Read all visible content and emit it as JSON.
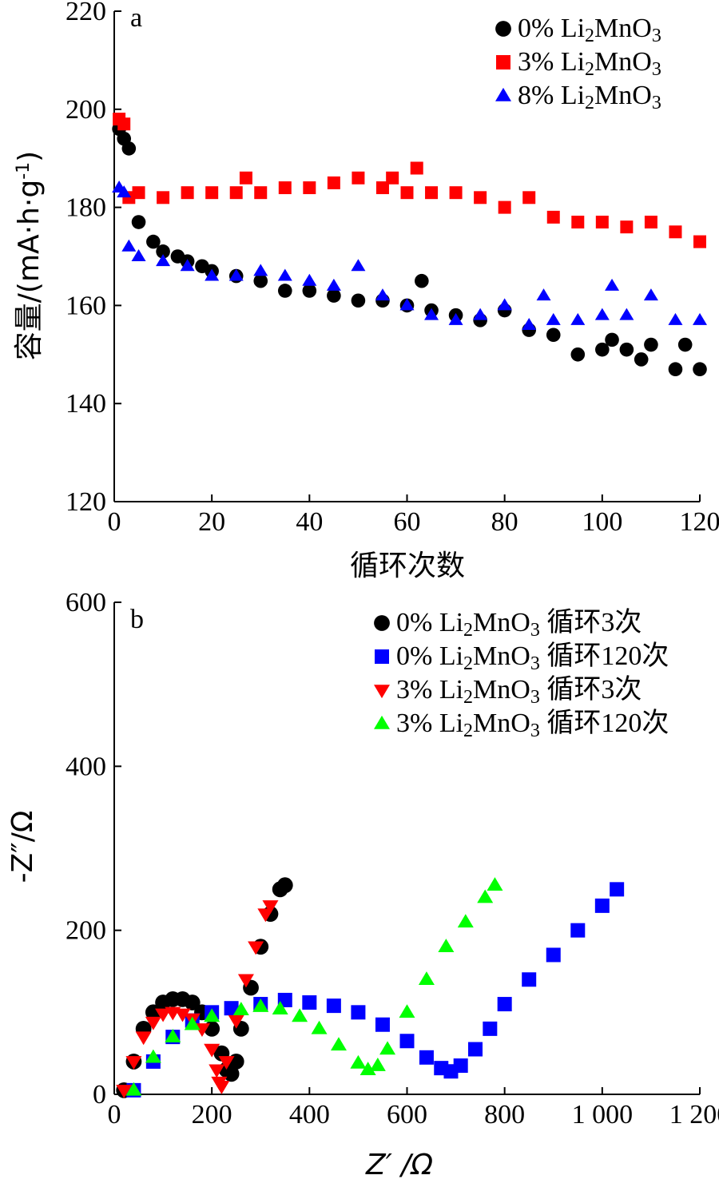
{
  "chart_data": [
    {
      "type": "scatter",
      "panel_label": "a",
      "xlabel": "循环次数",
      "ylabel": "容量/(mA·h·g⁻¹)",
      "xlim": [
        0,
        120
      ],
      "ylim": [
        120,
        220
      ],
      "x_ticks": [
        "0",
        "20",
        "40",
        "60",
        "80",
        "100",
        "120"
      ],
      "y_ticks": [
        "120",
        "140",
        "160",
        "180",
        "200",
        "220"
      ],
      "legend_position": "top-right",
      "series": [
        {
          "name": "0% Li2MnO3",
          "color": "#000000",
          "marker": "circle",
          "x": [
            1,
            2,
            3,
            5,
            8,
            10,
            13,
            15,
            18,
            20,
            25,
            30,
            35,
            40,
            45,
            50,
            55,
            60,
            63,
            65,
            70,
            75,
            80,
            85,
            90,
            95,
            100,
            102,
            105,
            108,
            110,
            115,
            117,
            120
          ],
          "values": [
            196,
            194,
            192,
            177,
            173,
            171,
            170,
            169,
            168,
            167,
            166,
            165,
            163,
            163,
            162,
            161,
            161,
            160,
            165,
            159,
            158,
            157,
            159,
            155,
            154,
            150,
            151,
            153,
            151,
            149,
            152,
            147,
            152,
            147
          ]
        },
        {
          "name": "3% Li2MnO3",
          "color": "#ff0000",
          "marker": "square",
          "x": [
            1,
            2,
            3,
            5,
            10,
            15,
            20,
            25,
            27,
            30,
            35,
            40,
            45,
            50,
            55,
            57,
            60,
            62,
            65,
            70,
            75,
            80,
            85,
            90,
            95,
            100,
            105,
            110,
            115,
            120
          ],
          "values": [
            198,
            197,
            182,
            183,
            182,
            183,
            183,
            183,
            186,
            183,
            184,
            184,
            185,
            186,
            184,
            186,
            183,
            188,
            183,
            183,
            182,
            180,
            182,
            178,
            177,
            177,
            176,
            177,
            175,
            173
          ]
        },
        {
          "name": "8% Li2MnO3",
          "color": "#0000ff",
          "marker": "triangle",
          "x": [
            1,
            2,
            3,
            5,
            10,
            15,
            20,
            25,
            30,
            35,
            40,
            45,
            50,
            55,
            60,
            65,
            70,
            75,
            80,
            85,
            88,
            90,
            95,
            100,
            102,
            105,
            110,
            115,
            120
          ],
          "values": [
            184,
            183,
            172,
            170,
            169,
            168,
            166,
            166,
            167,
            166,
            165,
            164,
            168,
            162,
            160,
            158,
            157,
            158,
            160,
            156,
            162,
            157,
            157,
            158,
            164,
            158,
            162,
            157,
            157
          ]
        }
      ]
    },
    {
      "type": "scatter",
      "panel_label": "b",
      "xlabel": "Z′ /Ω",
      "ylabel": "-Z″/Ω",
      "xlim": [
        0,
        1200
      ],
      "ylim": [
        0,
        600
      ],
      "x_ticks": [
        "0",
        "200",
        "400",
        "600",
        "800",
        "1 000",
        "1 200"
      ],
      "y_ticks": [
        "0",
        "200",
        "400",
        "600"
      ],
      "legend_position": "top-right",
      "series": [
        {
          "name": "0% Li2MnO3 循环3次",
          "color": "#000000",
          "marker": "circle",
          "x": [
            20,
            40,
            60,
            80,
            100,
            120,
            140,
            160,
            180,
            200,
            220,
            230,
            240,
            250,
            260,
            280,
            300,
            320,
            340,
            350
          ],
          "values": [
            5,
            40,
            80,
            100,
            112,
            116,
            116,
            112,
            100,
            80,
            50,
            30,
            25,
            40,
            80,
            130,
            180,
            220,
            250,
            255
          ]
        },
        {
          "name": "0% Li2MnO3 循环120次",
          "color": "#0000ff",
          "marker": "square",
          "x": [
            40,
            80,
            120,
            160,
            200,
            240,
            300,
            350,
            400,
            450,
            500,
            550,
            600,
            640,
            670,
            690,
            710,
            740,
            770,
            800,
            850,
            900,
            950,
            1000,
            1030
          ],
          "values": [
            5,
            40,
            70,
            90,
            100,
            105,
            110,
            115,
            112,
            108,
            100,
            85,
            65,
            45,
            32,
            28,
            35,
            55,
            80,
            110,
            140,
            170,
            200,
            230,
            250
          ]
        },
        {
          "name": "3% Li2MnO3 循环3次",
          "color": "#ff0000",
          "marker": "triangle-down",
          "x": [
            20,
            40,
            60,
            80,
            100,
            120,
            140,
            160,
            180,
            200,
            210,
            215,
            220,
            230,
            250,
            270,
            290,
            310,
            320
          ],
          "values": [
            5,
            40,
            70,
            88,
            98,
            100,
            98,
            92,
            80,
            55,
            30,
            15,
            10,
            40,
            90,
            140,
            180,
            220,
            230
          ]
        },
        {
          "name": "3% Li2MnO3 循环120次",
          "color": "#00ff00",
          "marker": "triangle",
          "x": [
            40,
            80,
            120,
            160,
            200,
            260,
            300,
            340,
            380,
            420,
            460,
            500,
            520,
            540,
            560,
            600,
            640,
            680,
            720,
            760,
            780
          ],
          "values": [
            5,
            45,
            70,
            85,
            95,
            103,
            107,
            104,
            95,
            80,
            60,
            38,
            30,
            35,
            55,
            100,
            140,
            180,
            210,
            240,
            255
          ]
        }
      ]
    }
  ]
}
